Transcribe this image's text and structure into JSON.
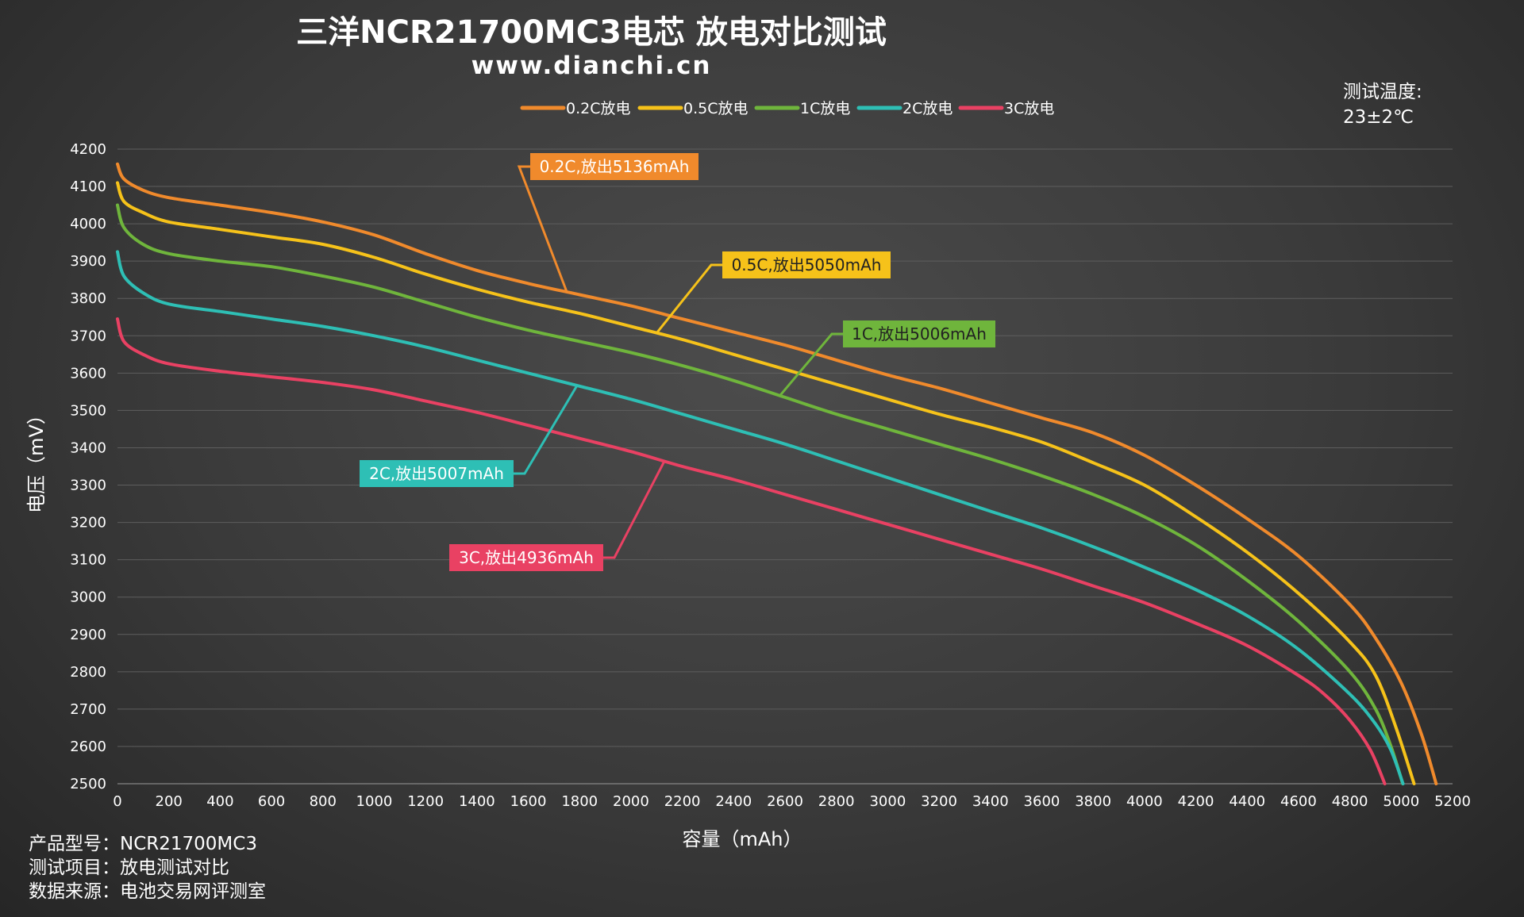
{
  "chart_data": {
    "type": "line",
    "title": "三洋NCR21700MC3电芯 放电对比测试",
    "subtitle": "www.dianchi.cn",
    "xlabel": "容量（mAh）",
    "ylabel": "电压（mV）",
    "xlim": [
      0,
      5200
    ],
    "ylim": [
      2500,
      4200
    ],
    "x_ticks": [
      0,
      200,
      400,
      600,
      800,
      1000,
      1200,
      1400,
      1600,
      1800,
      2000,
      2200,
      2400,
      2600,
      2800,
      3000,
      3200,
      3400,
      3600,
      3800,
      4000,
      4200,
      4400,
      4600,
      4800,
      5000,
      5200
    ],
    "y_ticks": [
      2500,
      2600,
      2700,
      2800,
      2900,
      3000,
      3100,
      3200,
      3300,
      3400,
      3500,
      3600,
      3700,
      3800,
      3900,
      4000,
      4100,
      4200
    ],
    "grid": "horizontal",
    "legend_position": "top-center",
    "temperature_label": "测试温度:",
    "temperature_value": "23±2℃",
    "series": [
      {
        "name": "0.2C放电",
        "color": "#f08a2c",
        "annotation": "0.2C,放出5136mAh",
        "points": [
          [
            0,
            4160
          ],
          [
            25,
            4120
          ],
          [
            100,
            4090
          ],
          [
            200,
            4070
          ],
          [
            400,
            4050
          ],
          [
            600,
            4030
          ],
          [
            800,
            4005
          ],
          [
            1000,
            3970
          ],
          [
            1200,
            3920
          ],
          [
            1400,
            3875
          ],
          [
            1600,
            3840
          ],
          [
            1800,
            3810
          ],
          [
            2000,
            3780
          ],
          [
            2200,
            3745
          ],
          [
            2400,
            3710
          ],
          [
            2600,
            3675
          ],
          [
            2800,
            3635
          ],
          [
            3000,
            3595
          ],
          [
            3200,
            3560
          ],
          [
            3400,
            3520
          ],
          [
            3600,
            3480
          ],
          [
            3800,
            3440
          ],
          [
            4000,
            3380
          ],
          [
            4200,
            3300
          ],
          [
            4400,
            3210
          ],
          [
            4600,
            3110
          ],
          [
            4800,
            2980
          ],
          [
            4900,
            2890
          ],
          [
            5000,
            2770
          ],
          [
            5080,
            2630
          ],
          [
            5136,
            2500
          ]
        ]
      },
      {
        "name": "0.5C放电",
        "color": "#f6c21a",
        "annotation": "0.5C,放出5050mAh",
        "points": [
          [
            0,
            4110
          ],
          [
            25,
            4060
          ],
          [
            100,
            4030
          ],
          [
            200,
            4005
          ],
          [
            400,
            3985
          ],
          [
            600,
            3965
          ],
          [
            800,
            3945
          ],
          [
            1000,
            3910
          ],
          [
            1200,
            3865
          ],
          [
            1400,
            3825
          ],
          [
            1600,
            3790
          ],
          [
            1800,
            3760
          ],
          [
            2000,
            3725
          ],
          [
            2200,
            3690
          ],
          [
            2400,
            3650
          ],
          [
            2600,
            3610
          ],
          [
            2800,
            3570
          ],
          [
            3000,
            3530
          ],
          [
            3200,
            3490
          ],
          [
            3400,
            3455
          ],
          [
            3600,
            3415
          ],
          [
            3800,
            3360
          ],
          [
            4000,
            3300
          ],
          [
            4200,
            3215
          ],
          [
            4400,
            3120
          ],
          [
            4600,
            3010
          ],
          [
            4800,
            2880
          ],
          [
            4900,
            2790
          ],
          [
            4980,
            2650
          ],
          [
            5050,
            2500
          ]
        ]
      },
      {
        "name": "1C放电",
        "color": "#6fb53c",
        "annotation": "1C,放出5006mAh",
        "points": [
          [
            0,
            4050
          ],
          [
            25,
            3990
          ],
          [
            100,
            3945
          ],
          [
            200,
            3920
          ],
          [
            400,
            3900
          ],
          [
            600,
            3885
          ],
          [
            800,
            3860
          ],
          [
            1000,
            3830
          ],
          [
            1200,
            3790
          ],
          [
            1400,
            3750
          ],
          [
            1600,
            3715
          ],
          [
            1800,
            3685
          ],
          [
            2000,
            3655
          ],
          [
            2200,
            3620
          ],
          [
            2400,
            3580
          ],
          [
            2600,
            3535
          ],
          [
            2800,
            3490
          ],
          [
            3000,
            3450
          ],
          [
            3200,
            3410
          ],
          [
            3400,
            3370
          ],
          [
            3600,
            3325
          ],
          [
            3800,
            3275
          ],
          [
            4000,
            3215
          ],
          [
            4200,
            3140
          ],
          [
            4400,
            3045
          ],
          [
            4600,
            2935
          ],
          [
            4800,
            2800
          ],
          [
            4900,
            2700
          ],
          [
            4960,
            2600
          ],
          [
            5006,
            2500
          ]
        ]
      },
      {
        "name": "2C放电",
        "color": "#2ebfb5",
        "annotation": "2C,放出5007mAh",
        "points": [
          [
            0,
            3925
          ],
          [
            25,
            3860
          ],
          [
            100,
            3815
          ],
          [
            200,
            3785
          ],
          [
            400,
            3765
          ],
          [
            600,
            3745
          ],
          [
            800,
            3725
          ],
          [
            1000,
            3700
          ],
          [
            1200,
            3670
          ],
          [
            1400,
            3635
          ],
          [
            1600,
            3600
          ],
          [
            1800,
            3565
          ],
          [
            2000,
            3530
          ],
          [
            2200,
            3490
          ],
          [
            2400,
            3450
          ],
          [
            2600,
            3410
          ],
          [
            2800,
            3365
          ],
          [
            3000,
            3320
          ],
          [
            3200,
            3275
          ],
          [
            3400,
            3230
          ],
          [
            3600,
            3185
          ],
          [
            3800,
            3135
          ],
          [
            4000,
            3080
          ],
          [
            4200,
            3020
          ],
          [
            4400,
            2950
          ],
          [
            4600,
            2860
          ],
          [
            4800,
            2740
          ],
          [
            4900,
            2660
          ],
          [
            4960,
            2590
          ],
          [
            5007,
            2500
          ]
        ]
      },
      {
        "name": "3C放电",
        "color": "#e94163",
        "annotation": "3C,放出4936mAh",
        "points": [
          [
            0,
            3745
          ],
          [
            25,
            3685
          ],
          [
            100,
            3650
          ],
          [
            200,
            3625
          ],
          [
            400,
            3605
          ],
          [
            600,
            3590
          ],
          [
            800,
            3575
          ],
          [
            1000,
            3555
          ],
          [
            1200,
            3525
          ],
          [
            1400,
            3495
          ],
          [
            1600,
            3460
          ],
          [
            1800,
            3425
          ],
          [
            2000,
            3390
          ],
          [
            2200,
            3350
          ],
          [
            2400,
            3315
          ],
          [
            2600,
            3275
          ],
          [
            2800,
            3235
          ],
          [
            3000,
            3195
          ],
          [
            3200,
            3155
          ],
          [
            3400,
            3115
          ],
          [
            3600,
            3075
          ],
          [
            3800,
            3030
          ],
          [
            4000,
            2985
          ],
          [
            4200,
            2930
          ],
          [
            4400,
            2870
          ],
          [
            4600,
            2790
          ],
          [
            4700,
            2740
          ],
          [
            4800,
            2670
          ],
          [
            4880,
            2590
          ],
          [
            4936,
            2500
          ]
        ]
      }
    ]
  },
  "info": {
    "model": "产品型号：NCR21700MC3",
    "test_item": "测试项目：放电测试对比",
    "source": "数据来源：电池交易网评测室"
  }
}
